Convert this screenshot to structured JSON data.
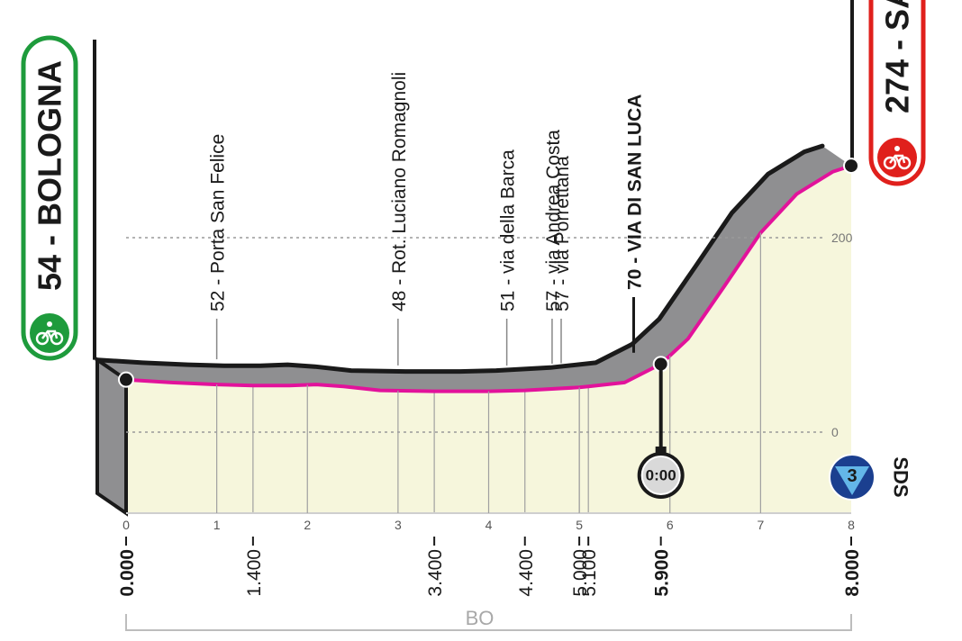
{
  "chart_data": {
    "type": "area",
    "title": "",
    "xlabel": "",
    "ylabel": "",
    "xlim": [
      0,
      8
    ],
    "ylim": [
      0,
      274
    ],
    "x_ticks": [
      "0",
      "1",
      "2",
      "3",
      "4",
      "5",
      "6",
      "7",
      "8"
    ],
    "y_grid": [
      {
        "value": 0,
        "label": "0"
      },
      {
        "value": 200,
        "label": "200"
      }
    ],
    "profile": [
      {
        "km": 0.0,
        "alt": 54
      },
      {
        "km": 0.5,
        "alt": 51
      },
      {
        "km": 1.0,
        "alt": 49
      },
      {
        "km": 1.4,
        "alt": 48
      },
      {
        "km": 1.8,
        "alt": 48
      },
      {
        "km": 2.1,
        "alt": 49
      },
      {
        "km": 2.4,
        "alt": 47
      },
      {
        "km": 2.8,
        "alt": 43
      },
      {
        "km": 3.4,
        "alt": 42
      },
      {
        "km": 4.0,
        "alt": 42
      },
      {
        "km": 4.4,
        "alt": 43
      },
      {
        "km": 5.0,
        "alt": 46
      },
      {
        "km": 5.1,
        "alt": 47
      },
      {
        "km": 5.5,
        "alt": 51
      },
      {
        "km": 5.9,
        "alt": 70
      },
      {
        "km": 6.2,
        "alt": 96
      },
      {
        "km": 6.6,
        "alt": 150
      },
      {
        "km": 7.0,
        "alt": 205
      },
      {
        "km": 7.4,
        "alt": 245
      },
      {
        "km": 7.8,
        "alt": 268
      },
      {
        "km": 8.0,
        "alt": 274
      }
    ],
    "waypoints": [
      {
        "km": 1.0,
        "label": "52 - Porta San Felice",
        "bold": false
      },
      {
        "km": 3.0,
        "label": "48 - Rot. Luciano Romagnoli",
        "bold": false
      },
      {
        "km": 4.2,
        "label": "51 - via della Barca",
        "bold": false
      },
      {
        "km": 4.7,
        "label": "57 - via Andrea Costa",
        "bold": false
      },
      {
        "km": 4.8,
        "label": "57 - via Porrettana",
        "bold": false
      },
      {
        "km": 5.6,
        "label": "70 - VIA DI SAN LUCA",
        "bold": true
      }
    ],
    "distance_marks": [
      {
        "km": 0.0,
        "label": "0.000",
        "bold": true
      },
      {
        "km": 1.4,
        "label": "1.400",
        "bold": false
      },
      {
        "km": 3.4,
        "label": "3.400",
        "bold": false
      },
      {
        "km": 4.4,
        "label": "4.400",
        "bold": false
      },
      {
        "km": 5.0,
        "label": "5.000",
        "bold": false
      },
      {
        "km": 5.1,
        "label": "5.100",
        "bold": false
      },
      {
        "km": 5.9,
        "label": "5.900",
        "bold": true
      },
      {
        "km": 8.0,
        "label": "8.000",
        "bold": true
      }
    ],
    "start": {
      "km": 0,
      "label": "54 - BOLOGNA",
      "color": "#1e9b3c"
    },
    "finish": {
      "km": 8,
      "label": "274 - SA",
      "color": "#e0201c"
    },
    "intermediate_time": {
      "km": 5.9,
      "label": "0:00"
    },
    "sds": {
      "km": 8,
      "number": "3",
      "label": "SDS"
    },
    "province": "BO",
    "colors": {
      "road_line": "#e2129b",
      "profile_gray": "#8f8f91",
      "fill": "#f6f6dc",
      "outline": "#1a1a1a"
    }
  }
}
